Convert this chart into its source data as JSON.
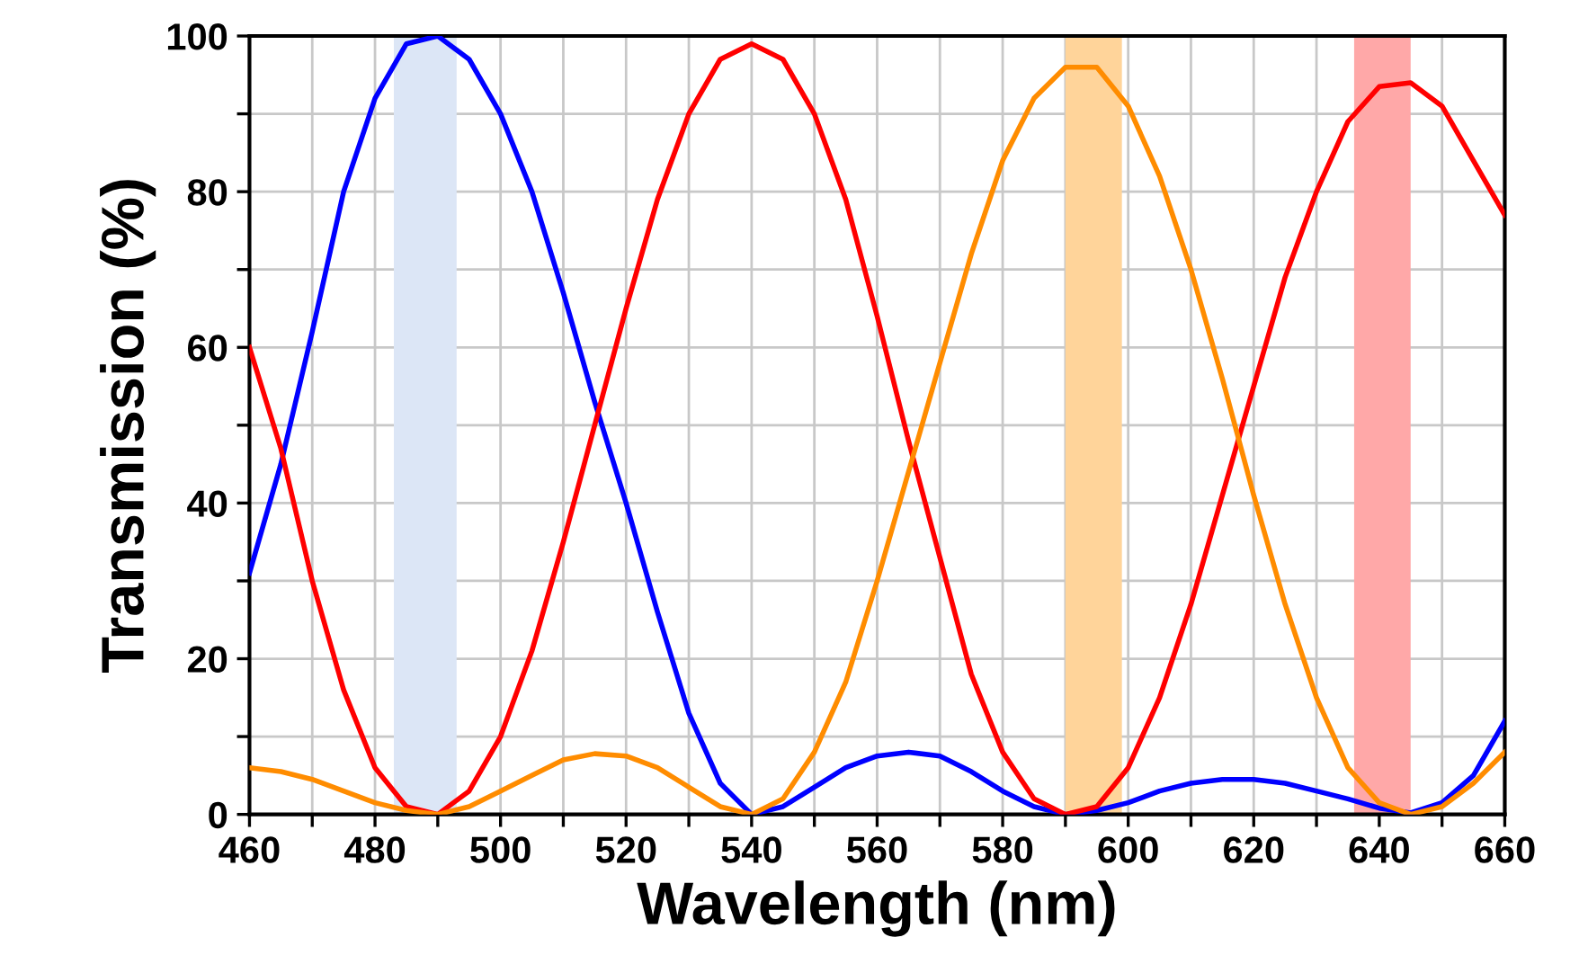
{
  "chart_data": {
    "type": "line",
    "xlabel": "Wavelength (nm)",
    "ylabel": "Transmission (%)",
    "x": [
      460,
      465,
      470,
      475,
      480,
      485,
      490,
      495,
      500,
      505,
      510,
      515,
      520,
      525,
      530,
      535,
      540,
      545,
      550,
      555,
      560,
      565,
      570,
      575,
      580,
      585,
      590,
      595,
      600,
      605,
      610,
      615,
      620,
      625,
      630,
      635,
      640,
      645,
      650,
      655,
      660
    ],
    "series": [
      {
        "color": "#0000ff",
        "values": [
          31,
          45,
          62,
          80,
          92,
          99,
          100,
          97,
          90,
          80,
          67,
          53,
          40,
          26,
          13,
          4,
          0,
          1,
          3.5,
          6,
          7.5,
          8,
          7.5,
          5.5,
          3,
          1,
          0,
          0.5,
          1.5,
          3,
          4,
          4.5,
          4.5,
          4,
          3,
          2,
          0.8,
          0.2,
          1.5,
          5,
          12
        ]
      },
      {
        "color": "#ff0000",
        "values": [
          60,
          47,
          30,
          16,
          6,
          1,
          0,
          3,
          10,
          21,
          35,
          50,
          65,
          79,
          90,
          97,
          99,
          97,
          90,
          79,
          64,
          48,
          33,
          18,
          8,
          2,
          0,
          1,
          6,
          15,
          27,
          41,
          55,
          69,
          80,
          89,
          93.5,
          94,
          91,
          84,
          77
        ]
      },
      {
        "color": "#ff8c00",
        "values": [
          6,
          5.5,
          4.5,
          3,
          1.5,
          0.5,
          0,
          1,
          3,
          5,
          7,
          7.8,
          7.5,
          6,
          3.5,
          1,
          0,
          2,
          8,
          17,
          30,
          44,
          58,
          72,
          84,
          92,
          96,
          96,
          91,
          82,
          70,
          56,
          41,
          27,
          15,
          6,
          1.5,
          0,
          1,
          4,
          8
        ]
      }
    ],
    "bands": [
      {
        "axis": "x",
        "from": 483,
        "to": 493,
        "color": "#dce6f6"
      },
      {
        "axis": "x",
        "from": 590,
        "to": 599,
        "color": "#ffd49a"
      },
      {
        "axis": "x",
        "from": 636,
        "to": 645,
        "color": "#ffa8a8"
      }
    ],
    "xlim": [
      460,
      660
    ],
    "xticks": [
      460,
      {
        "value": 470,
        "label": null
      },
      480,
      {
        "value": 490,
        "label": null
      },
      500,
      {
        "value": 510,
        "label": null
      },
      520,
      {
        "value": 530,
        "label": null
      },
      540,
      {
        "value": 550,
        "label": null
      },
      560,
      {
        "value": 570,
        "label": null
      },
      580,
      {
        "value": 590,
        "label": null
      },
      600,
      {
        "value": 610,
        "label": null
      },
      620,
      {
        "value": 630,
        "label": null
      },
      640,
      {
        "value": 650,
        "label": null
      },
      660
    ],
    "ylim": [
      0,
      100
    ],
    "yticks": [
      0,
      {
        "value": 10,
        "label": null
      },
      20,
      {
        "value": 30,
        "label": null
      },
      40,
      {
        "value": 50,
        "label": null
      },
      60,
      {
        "value": 70,
        "label": null
      },
      80,
      {
        "value": 90,
        "label": null
      },
      100
    ],
    "grid": true,
    "marker": "none",
    "line_style": "solid"
  }
}
